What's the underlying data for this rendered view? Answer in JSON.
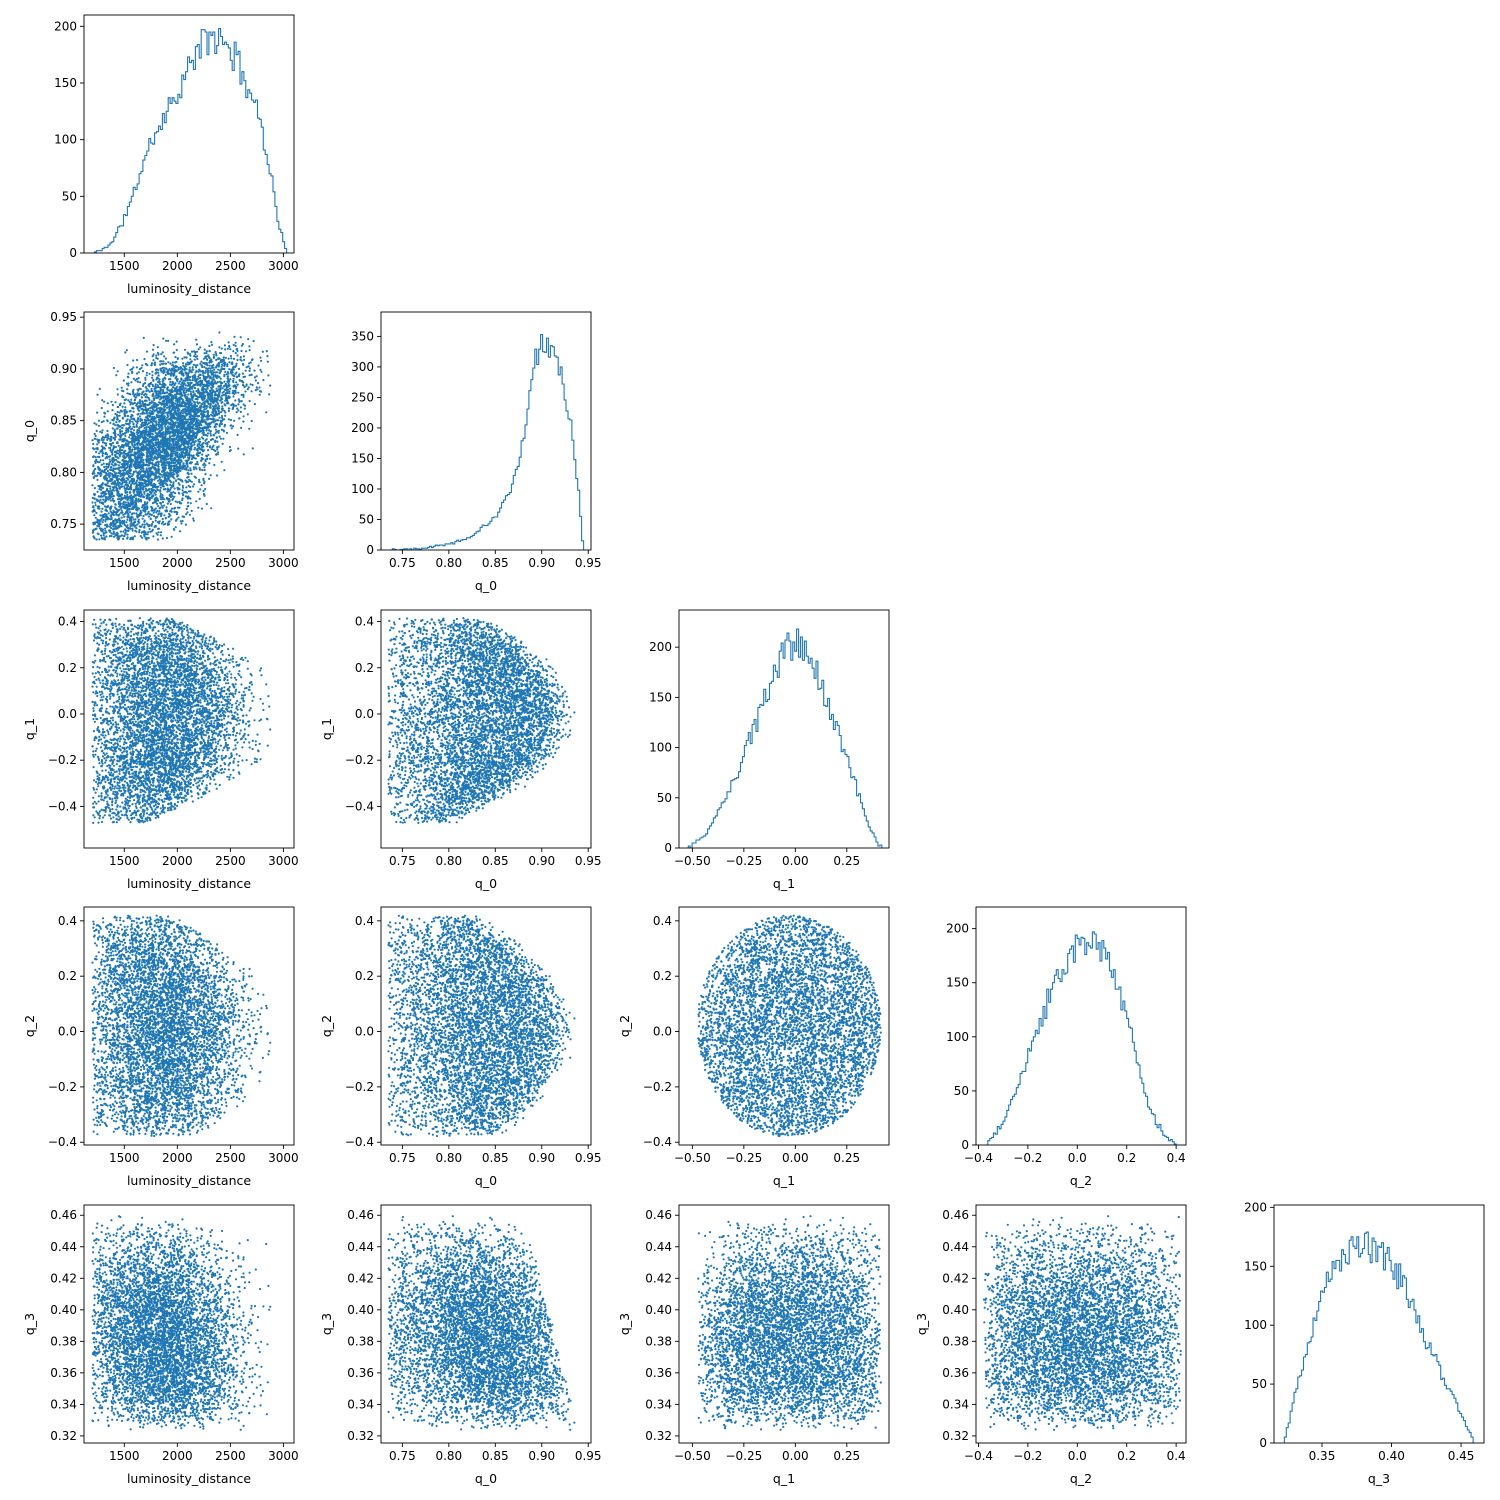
{
  "figure": {
    "type": "corner-plot",
    "parameters": [
      "luminosity_distance",
      "q_0",
      "q_1",
      "q_2",
      "q_3"
    ],
    "colors": {
      "series": "#1f77b4",
      "axes": "#000000",
      "background": "#ffffff"
    }
  },
  "chart_data": [
    {
      "type": "histogram",
      "row": 0,
      "col": 0,
      "param": "luminosity_distance",
      "xlabel": "luminosity_distance",
      "ylabel": "",
      "xlim": [
        1120,
        3100
      ],
      "ylim": [
        0,
        210
      ],
      "xticks": [
        1500,
        2000,
        2500,
        3000
      ],
      "xticklabels": [
        "1500",
        "2000",
        "2500",
        "3000"
      ],
      "yticks": [
        0,
        50,
        100,
        150,
        200
      ],
      "yticklabels": [
        "0",
        "50",
        "100",
        "150",
        "200"
      ],
      "density": [
        [
          1200,
          0
        ],
        [
          1300,
          3
        ],
        [
          1400,
          12
        ],
        [
          1500,
          30
        ],
        [
          1600,
          55
        ],
        [
          1700,
          85
        ],
        [
          1800,
          108
        ],
        [
          1900,
          125
        ],
        [
          2000,
          142
        ],
        [
          2100,
          160
        ],
        [
          2200,
          180
        ],
        [
          2300,
          190
        ],
        [
          2400,
          187
        ],
        [
          2500,
          180
        ],
        [
          2600,
          162
        ],
        [
          2700,
          140
        ],
        [
          2800,
          110
        ],
        [
          2900,
          60
        ],
        [
          2950,
          30
        ],
        [
          3000,
          10
        ],
        [
          3030,
          0
        ]
      ],
      "range": [
        1200,
        3030
      ],
      "bins": 100,
      "total": 10000,
      "seed": 11
    },
    {
      "type": "scatter",
      "row": 1,
      "col": 0,
      "x": "luminosity_distance",
      "y": "q_0",
      "xlabel": "luminosity_distance",
      "ylabel": "q_0",
      "xlim": [
        1120,
        3100
      ],
      "ylim": [
        0.725,
        0.955
      ],
      "xticks": [
        1500,
        2000,
        2500,
        3000
      ],
      "xticklabels": [
        "1500",
        "2000",
        "2500",
        "3000"
      ],
      "yticks": [
        0.75,
        0.8,
        0.85,
        0.9,
        0.95
      ],
      "yticklabels": [
        "0.75",
        "0.80",
        "0.85",
        "0.90",
        "0.95"
      ]
    },
    {
      "type": "histogram",
      "row": 1,
      "col": 1,
      "param": "q_0",
      "xlabel": "q_0",
      "ylabel": "",
      "xlim": [
        0.727,
        0.953
      ],
      "ylim": [
        0,
        390
      ],
      "xticks": [
        0.75,
        0.8,
        0.85,
        0.9,
        0.95
      ],
      "xticklabels": [
        "0.75",
        "0.80",
        "0.85",
        "0.90",
        "0.95"
      ],
      "yticks": [
        0,
        50,
        100,
        150,
        200,
        250,
        300,
        350
      ],
      "yticklabels": [
        "0",
        "50",
        "100",
        "150",
        "200",
        "250",
        "300",
        "350"
      ],
      "density": [
        [
          0.735,
          0
        ],
        [
          0.75,
          1
        ],
        [
          0.775,
          4
        ],
        [
          0.8,
          10
        ],
        [
          0.825,
          22
        ],
        [
          0.85,
          55
        ],
        [
          0.865,
          90
        ],
        [
          0.875,
          140
        ],
        [
          0.885,
          220
        ],
        [
          0.892,
          300
        ],
        [
          0.9,
          350
        ],
        [
          0.91,
          340
        ],
        [
          0.92,
          300
        ],
        [
          0.93,
          220
        ],
        [
          0.937,
          140
        ],
        [
          0.942,
          50
        ],
        [
          0.945,
          0
        ]
      ],
      "range": [
        0.735,
        0.945
      ],
      "bins": 100,
      "total": 10000,
      "seed": 22
    },
    {
      "type": "scatter",
      "row": 2,
      "col": 0,
      "x": "luminosity_distance",
      "y": "q_1",
      "xlabel": "luminosity_distance",
      "ylabel": "q_1",
      "xlim": [
        1120,
        3100
      ],
      "ylim": [
        -0.58,
        0.45
      ],
      "xticks": [
        1500,
        2000,
        2500,
        3000
      ],
      "xticklabels": [
        "1500",
        "2000",
        "2500",
        "3000"
      ],
      "yticks": [
        -0.4,
        -0.2,
        0.0,
        0.2,
        0.4
      ],
      "yticklabels": [
        "−0.4",
        "−0.2",
        "0.0",
        "0.2",
        "0.4"
      ]
    },
    {
      "type": "scatter",
      "row": 2,
      "col": 1,
      "x": "q_0",
      "y": "q_1",
      "xlabel": "q_0",
      "ylabel": "q_1",
      "xlim": [
        0.727,
        0.953
      ],
      "ylim": [
        -0.58,
        0.45
      ],
      "xticks": [
        0.75,
        0.8,
        0.85,
        0.9,
        0.95
      ],
      "xticklabels": [
        "0.75",
        "0.80",
        "0.85",
        "0.90",
        "0.95"
      ],
      "yticks": [
        -0.4,
        -0.2,
        0.0,
        0.2,
        0.4
      ],
      "yticklabels": [
        "−0.4",
        "−0.2",
        "0.0",
        "0.2",
        "0.4"
      ]
    },
    {
      "type": "histogram",
      "row": 2,
      "col": 2,
      "param": "q_1",
      "xlabel": "q_1",
      "ylabel": "",
      "xlim": [
        -0.565,
        0.455
      ],
      "ylim": [
        0,
        237
      ],
      "xticks": [
        -0.5,
        -0.25,
        0.0,
        0.25
      ],
      "xticklabels": [
        "−0.50",
        "−0.25",
        "0.00",
        "0.25"
      ],
      "yticks": [
        0,
        50,
        100,
        150,
        200
      ],
      "yticklabels": [
        "0",
        "50",
        "100",
        "150",
        "200"
      ],
      "density": [
        [
          -0.52,
          0
        ],
        [
          -0.45,
          10
        ],
        [
          -0.4,
          25
        ],
        [
          -0.3,
          65
        ],
        [
          -0.2,
          120
        ],
        [
          -0.1,
          175
        ],
        [
          -0.05,
          197
        ],
        [
          0.0,
          205
        ],
        [
          0.05,
          197
        ],
        [
          0.1,
          175
        ],
        [
          0.2,
          120
        ],
        [
          0.25,
          90
        ],
        [
          0.3,
          60
        ],
        [
          0.35,
          25
        ],
        [
          0.4,
          5
        ],
        [
          0.42,
          0
        ]
      ],
      "range": [
        -0.52,
        0.42
      ],
      "bins": 100,
      "total": 10000,
      "seed": 33
    },
    {
      "type": "scatter",
      "row": 3,
      "col": 0,
      "x": "luminosity_distance",
      "y": "q_2",
      "xlabel": "luminosity_distance",
      "ylabel": "q_2",
      "xlim": [
        1120,
        3100
      ],
      "ylim": [
        -0.41,
        0.45
      ],
      "xticks": [
        1500,
        2000,
        2500,
        3000
      ],
      "xticklabels": [
        "1500",
        "2000",
        "2500",
        "3000"
      ],
      "yticks": [
        -0.4,
        -0.2,
        0.0,
        0.2,
        0.4
      ],
      "yticklabels": [
        "−0.4",
        "−0.2",
        "0.0",
        "0.2",
        "0.4"
      ]
    },
    {
      "type": "scatter",
      "row": 3,
      "col": 1,
      "x": "q_0",
      "y": "q_2",
      "xlabel": "q_0",
      "ylabel": "q_2",
      "xlim": [
        0.727,
        0.953
      ],
      "ylim": [
        -0.41,
        0.45
      ],
      "xticks": [
        0.75,
        0.8,
        0.85,
        0.9,
        0.95
      ],
      "xticklabels": [
        "0.75",
        "0.80",
        "0.85",
        "0.90",
        "0.95"
      ],
      "yticks": [
        -0.4,
        -0.2,
        0.0,
        0.2,
        0.4
      ],
      "yticklabels": [
        "−0.4",
        "−0.2",
        "0.0",
        "0.2",
        "0.4"
      ]
    },
    {
      "type": "scatter",
      "row": 3,
      "col": 2,
      "x": "q_1",
      "y": "q_2",
      "xlabel": "q_1",
      "ylabel": "q_2",
      "xlim": [
        -0.565,
        0.455
      ],
      "ylim": [
        -0.41,
        0.45
      ],
      "xticks": [
        -0.5,
        -0.25,
        0.0,
        0.25
      ],
      "xticklabels": [
        "−0.50",
        "−0.25",
        "0.00",
        "0.25"
      ],
      "yticks": [
        -0.4,
        -0.2,
        0.0,
        0.2,
        0.4
      ],
      "yticklabels": [
        "−0.4",
        "−0.2",
        "0.0",
        "0.2",
        "0.4"
      ]
    },
    {
      "type": "histogram",
      "row": 3,
      "col": 3,
      "param": "q_2",
      "xlabel": "q_2",
      "ylabel": "",
      "xlim": [
        -0.41,
        0.44
      ],
      "ylim": [
        0,
        220
      ],
      "xticks": [
        -0.4,
        -0.2,
        0.0,
        0.2,
        0.4
      ],
      "xticklabels": [
        "−0.4",
        "−0.2",
        "0.0",
        "0.2",
        "0.4"
      ],
      "yticks": [
        0,
        50,
        100,
        150,
        200
      ],
      "yticklabels": [
        "0",
        "50",
        "100",
        "150",
        "200"
      ],
      "density": [
        [
          -0.37,
          0
        ],
        [
          -0.3,
          20
        ],
        [
          -0.2,
          80
        ],
        [
          -0.1,
          145
        ],
        [
          0.0,
          185
        ],
        [
          0.05,
          190
        ],
        [
          0.1,
          180
        ],
        [
          0.15,
          155
        ],
        [
          0.2,
          120
        ],
        [
          0.25,
          70
        ],
        [
          0.3,
          30
        ],
        [
          0.35,
          10
        ],
        [
          0.4,
          0
        ]
      ],
      "range": [
        -0.37,
        0.4
      ],
      "bins": 100,
      "total": 10000,
      "seed": 44
    },
    {
      "type": "scatter",
      "row": 4,
      "col": 0,
      "x": "luminosity_distance",
      "y": "q_3",
      "xlabel": "luminosity_distance",
      "ylabel": "q_3",
      "xlim": [
        1120,
        3100
      ],
      "ylim": [
        0.3155,
        0.4665
      ],
      "xticks": [
        1500,
        2000,
        2500,
        3000
      ],
      "xticklabels": [
        "1500",
        "2000",
        "2500",
        "3000"
      ],
      "yticks": [
        0.32,
        0.34,
        0.36,
        0.38,
        0.4,
        0.42,
        0.44,
        0.46
      ],
      "yticklabels": [
        "0.32",
        "0.34",
        "0.36",
        "0.38",
        "0.40",
        "0.42",
        "0.44",
        "0.46"
      ]
    },
    {
      "type": "scatter",
      "row": 4,
      "col": 1,
      "x": "q_0",
      "y": "q_3",
      "xlabel": "q_0",
      "ylabel": "q_3",
      "xlim": [
        0.727,
        0.953
      ],
      "ylim": [
        0.3155,
        0.4665
      ],
      "xticks": [
        0.75,
        0.8,
        0.85,
        0.9,
        0.95
      ],
      "xticklabels": [
        "0.75",
        "0.80",
        "0.85",
        "0.90",
        "0.95"
      ],
      "yticks": [
        0.32,
        0.34,
        0.36,
        0.38,
        0.4,
        0.42,
        0.44,
        0.46
      ],
      "yticklabels": [
        "0.32",
        "0.34",
        "0.36",
        "0.38",
        "0.40",
        "0.42",
        "0.44",
        "0.46"
      ]
    },
    {
      "type": "scatter",
      "row": 4,
      "col": 2,
      "x": "q_1",
      "y": "q_3",
      "xlabel": "q_1",
      "ylabel": "q_3",
      "xlim": [
        -0.565,
        0.455
      ],
      "ylim": [
        0.3155,
        0.4665
      ],
      "xticks": [
        -0.5,
        -0.25,
        0.0,
        0.25
      ],
      "xticklabels": [
        "−0.50",
        "−0.25",
        "0.00",
        "0.25"
      ],
      "yticks": [
        0.32,
        0.34,
        0.36,
        0.38,
        0.4,
        0.42,
        0.44,
        0.46
      ],
      "yticklabels": [
        "0.32",
        "0.34",
        "0.36",
        "0.38",
        "0.40",
        "0.42",
        "0.44",
        "0.46"
      ]
    },
    {
      "type": "scatter",
      "row": 4,
      "col": 3,
      "x": "q_2",
      "y": "q_3",
      "xlabel": "q_2",
      "ylabel": "q_3",
      "xlim": [
        -0.41,
        0.44
      ],
      "ylim": [
        0.3155,
        0.4665
      ],
      "xticks": [
        -0.4,
        -0.2,
        0.0,
        0.2,
        0.4
      ],
      "xticklabels": [
        "−0.4",
        "−0.2",
        "0.0",
        "0.2",
        "0.4"
      ],
      "yticks": [
        0.32,
        0.34,
        0.36,
        0.38,
        0.4,
        0.42,
        0.44,
        0.46
      ],
      "yticklabels": [
        "0.32",
        "0.34",
        "0.36",
        "0.38",
        "0.40",
        "0.42",
        "0.44",
        "0.46"
      ]
    },
    {
      "type": "histogram",
      "row": 4,
      "col": 4,
      "param": "q_3",
      "xlabel": "q_3",
      "ylabel": "",
      "xlim": [
        0.3155,
        0.4665
      ],
      "ylim": [
        0,
        202
      ],
      "xticks": [
        0.35,
        0.4,
        0.45
      ],
      "xticklabels": [
        "0.35",
        "0.40",
        "0.45"
      ],
      "yticks": [
        0,
        50,
        100,
        150,
        200
      ],
      "yticklabels": [
        "0",
        "50",
        "100",
        "150",
        "200"
      ],
      "density": [
        [
          0.323,
          0
        ],
        [
          0.33,
          40
        ],
        [
          0.34,
          85
        ],
        [
          0.35,
          125
        ],
        [
          0.36,
          155
        ],
        [
          0.37,
          165
        ],
        [
          0.38,
          168
        ],
        [
          0.39,
          165
        ],
        [
          0.4,
          155
        ],
        [
          0.41,
          130
        ],
        [
          0.42,
          100
        ],
        [
          0.43,
          75
        ],
        [
          0.44,
          48
        ],
        [
          0.45,
          25
        ],
        [
          0.46,
          0
        ]
      ],
      "range": [
        0.323,
        0.46
      ],
      "bins": 100,
      "total": 10000,
      "seed": 55
    }
  ]
}
